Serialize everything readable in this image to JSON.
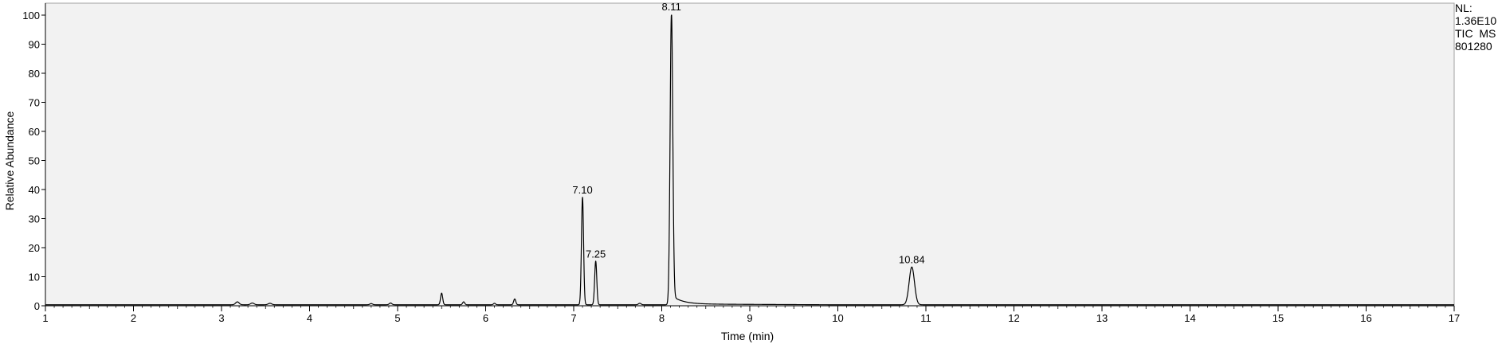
{
  "info": {
    "nl_label": "NL:",
    "nl_value": "1.36E10",
    "trace_label": "TIC  MS",
    "file_label": "801280"
  },
  "chart_data": {
    "type": "line",
    "title": "",
    "xlabel": "Time (min)",
    "ylabel": "Relative Abundance",
    "xlim": [
      1,
      17
    ],
    "ylim": [
      0,
      100
    ],
    "x_ticks": [
      1,
      2,
      3,
      4,
      5,
      6,
      7,
      8,
      9,
      10,
      11,
      12,
      13,
      14,
      15,
      16,
      17
    ],
    "y_ticks": [
      0,
      10,
      20,
      30,
      40,
      50,
      60,
      70,
      80,
      90,
      100
    ],
    "grid": false,
    "background": "#f2f2f2",
    "line_color": "#000000",
    "peaks": [
      {
        "rt": 3.18,
        "height": 1.0,
        "width": 0.02
      },
      {
        "rt": 3.35,
        "height": 0.6,
        "width": 0.02
      },
      {
        "rt": 3.55,
        "height": 0.5,
        "width": 0.02
      },
      {
        "rt": 4.7,
        "height": 0.4,
        "width": 0.015
      },
      {
        "rt": 4.92,
        "height": 0.6,
        "width": 0.015
      },
      {
        "rt": 5.5,
        "height": 4.0,
        "width": 0.012
      },
      {
        "rt": 5.75,
        "height": 1.0,
        "width": 0.012
      },
      {
        "rt": 6.1,
        "height": 0.5,
        "width": 0.012
      },
      {
        "rt": 6.33,
        "height": 2.0,
        "width": 0.012
      },
      {
        "rt": 7.1,
        "height": 37,
        "width": 0.012,
        "label": "7.10"
      },
      {
        "rt": 7.25,
        "height": 15,
        "width": 0.012,
        "label": "7.25"
      },
      {
        "rt": 7.75,
        "height": 0.5,
        "width": 0.015
      },
      {
        "rt": 8.11,
        "height": 100,
        "width": 0.015,
        "tail": 0.12,
        "label": "8.11"
      },
      {
        "rt": 10.84,
        "height": 13,
        "width": 0.03,
        "label": "10.84"
      }
    ]
  }
}
